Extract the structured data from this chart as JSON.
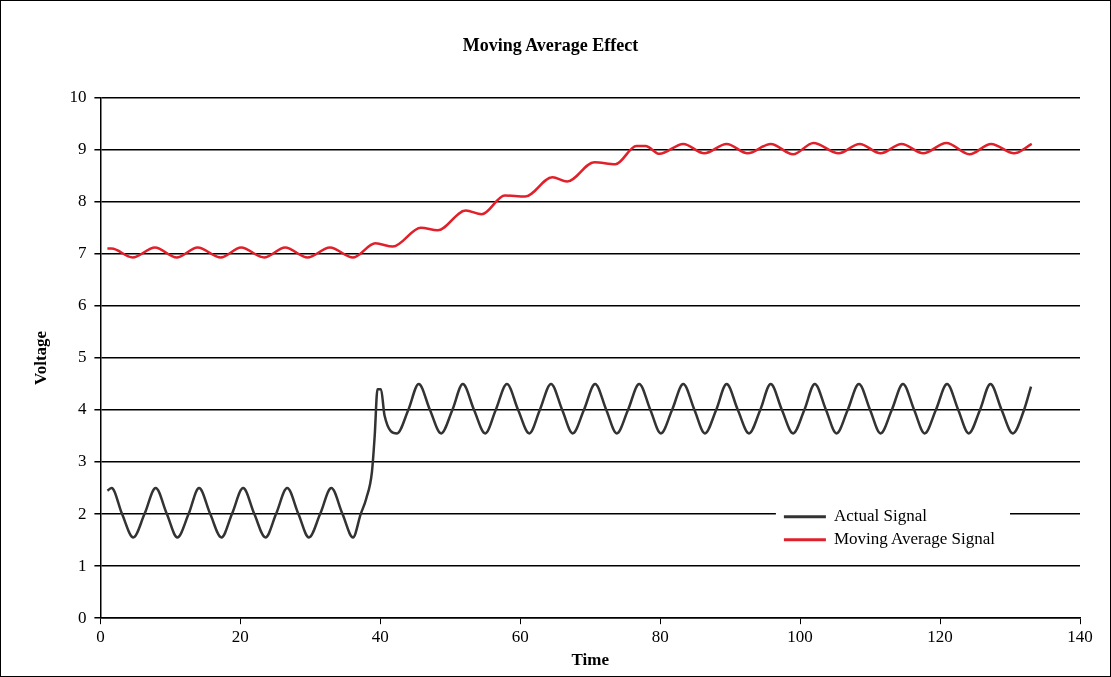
{
  "chart_data": {
    "type": "line",
    "title": "Moving Average Effect",
    "xlabel": "Time",
    "ylabel": "Voltage",
    "xlim": [
      0,
      140
    ],
    "xticks": [
      0,
      20,
      40,
      60,
      80,
      100,
      120,
      140
    ],
    "ylim": [
      0,
      10
    ],
    "yticks": [
      0,
      1,
      2,
      3,
      4,
      5,
      6,
      7,
      8,
      9,
      10
    ],
    "grid": "y",
    "legend": "bottom right",
    "marker": "none",
    "line_style": "solid",
    "series": [
      {
        "name": "Actual Signal",
        "color": "#333333",
        "x": [
          1,
          1.6,
          3.1,
          4.7,
          6.3,
          7.9,
          9.5,
          11.0,
          12.6,
          14.1,
          15.7,
          17.3,
          18.8,
          20.4,
          22.0,
          23.6,
          25.1,
          26.7,
          28.3,
          29.8,
          31.4,
          33.0,
          34.6,
          36.1,
          37.2,
          38,
          38.8,
          39.2,
          39.6,
          40.1,
          40.6,
          42.4,
          44,
          45.5,
          47.1,
          48.7,
          50.3,
          51.8,
          53.4,
          55.0,
          56.5,
          58.1,
          59.7,
          61.3,
          62.8,
          64.4,
          66.0,
          67.5,
          69.1,
          70.7,
          72.3,
          73.8,
          75.4,
          77.0,
          78.6,
          80.1,
          81.7,
          83.3,
          84.9,
          86.4,
          88.0,
          89.5,
          91.1,
          92.7,
          94.3,
          95.8,
          97.4,
          99.0,
          100.6,
          102.1,
          103.7,
          105.2,
          106.8,
          108.4,
          110.0,
          111.5,
          113.1,
          114.7,
          116.3,
          117.8,
          119.4,
          121.0,
          122.6,
          124.1,
          125.7,
          127.2,
          128.8,
          130.4,
          132,
          133
        ],
        "values": [
          2.45,
          2.5,
          2.0,
          1.55,
          2.0,
          2.5,
          2.0,
          1.55,
          2.0,
          2.5,
          2.0,
          1.55,
          2.0,
          2.5,
          2.0,
          1.55,
          2.0,
          2.5,
          2.0,
          1.55,
          2.0,
          2.5,
          2.0,
          1.55,
          2.0,
          2.3,
          2.8,
          3.5,
          4.4,
          4.4,
          3.9,
          3.55,
          4.0,
          4.5,
          4.0,
          3.55,
          4.0,
          4.5,
          4.0,
          3.55,
          4.0,
          4.5,
          4.0,
          3.55,
          4.0,
          4.5,
          4.0,
          3.55,
          4.0,
          4.5,
          4.0,
          3.55,
          4.0,
          4.5,
          4.0,
          3.55,
          4.0,
          4.5,
          4.0,
          3.55,
          4.0,
          4.5,
          4.0,
          3.55,
          4.0,
          4.5,
          4.0,
          3.55,
          4.0,
          4.5,
          4.0,
          3.55,
          4.0,
          4.5,
          4.0,
          3.55,
          4.0,
          4.5,
          4.0,
          3.55,
          4.0,
          4.5,
          4.0,
          3.55,
          4.0,
          4.5,
          4.0,
          3.55,
          4.0,
          4.45
        ]
      },
      {
        "name": "Moving Average Signal",
        "color": "#e0202a",
        "x": [
          1,
          1.6,
          4.6,
          7.8,
          10.9,
          13.9,
          17.2,
          20.1,
          23.4,
          26.4,
          29.6,
          32.8,
          36.1,
          39.3,
          41.8,
          45.8,
          48.2,
          52.2,
          54.5,
          57.8,
          60.7,
          64.6,
          66.7,
          70.6,
          73.6,
          76.6,
          77.9,
          79.9,
          83.3,
          86.3,
          89.5,
          92.5,
          95.8,
          99.0,
          101.9,
          105.5,
          108.5,
          111.5,
          114.5,
          117.6,
          120.9,
          124.2,
          127.3,
          130.6,
          133.1
        ],
        "values": [
          7.1,
          7.1,
          6.93,
          7.12,
          6.93,
          7.12,
          6.93,
          7.12,
          6.93,
          7.12,
          6.93,
          7.12,
          6.93,
          7.2,
          7.14,
          7.5,
          7.45,
          7.83,
          7.76,
          8.12,
          8.1,
          8.47,
          8.39,
          8.76,
          8.72,
          9.07,
          9.07,
          8.92,
          9.11,
          8.93,
          9.11,
          8.93,
          9.11,
          8.91,
          9.13,
          8.93,
          9.11,
          8.93,
          9.11,
          8.93,
          9.13,
          8.91,
          9.11,
          8.93,
          9.11
        ]
      }
    ]
  }
}
